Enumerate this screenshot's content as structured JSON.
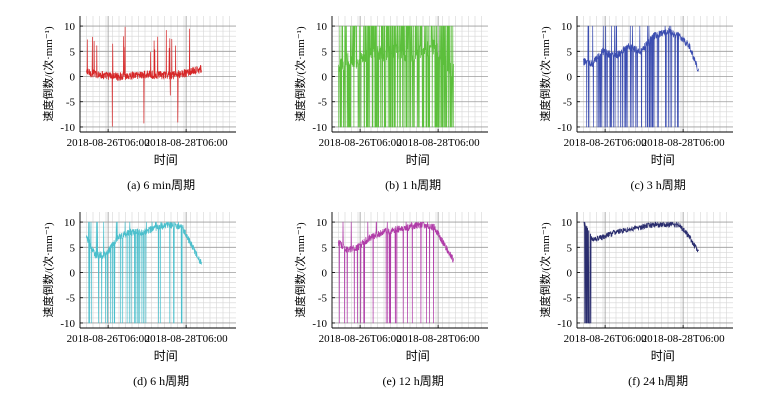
{
  "chart_data": [
    {
      "id": "a",
      "type": "line",
      "caption": "(a) 6 min周期",
      "color": "#d62728",
      "xlabel": "时间",
      "ylabel": "速度倒数/(次·mm⁻¹)",
      "ylim": [
        -11,
        12
      ],
      "yticks": [
        -10,
        -5,
        0,
        5,
        10
      ],
      "xtick_labels": [
        "2018-08-26T06:00",
        "2018-08-28T06:00"
      ],
      "grid": true,
      "series": [
        {
          "pattern": "noise",
          "x": [
            0.05,
            0.12,
            0.2,
            0.3,
            0.4,
            0.5,
            0.6,
            0.7,
            0.8,
            0.88,
            0.95
          ],
          "y": [
            0.8,
            0.5,
            0.2,
            0.0,
            0.2,
            0.4,
            0.3,
            0.2,
            0.5,
            1.0,
            1.5
          ]
        }
      ]
    },
    {
      "id": "b",
      "type": "line",
      "caption": "(b) 1 h周期",
      "color": "#5cbf3c",
      "xlabel": "时间",
      "ylabel": "速度倒数/(次·mm⁻¹)",
      "ylim": [
        -11,
        12
      ],
      "yticks": [
        -10,
        -5,
        0,
        5,
        10
      ],
      "xtick_labels": [
        "2018-08-26T06:00",
        "2018-08-28T06:00"
      ],
      "grid": true,
      "series": [
        {
          "pattern": "dense",
          "x": [
            0.05,
            0.12,
            0.2,
            0.3,
            0.4,
            0.5,
            0.6,
            0.7,
            0.8,
            0.88,
            0.95
          ],
          "y": [
            1.5,
            3.5,
            3.0,
            5.0,
            4.5,
            5.0,
            4.0,
            5.0,
            6.0,
            3.0,
            1.0
          ]
        }
      ]
    },
    {
      "id": "c",
      "type": "line",
      "caption": "(c) 3 h周期",
      "color": "#3b4db0",
      "xlabel": "时间",
      "ylabel": "速度倒数/(次·mm⁻¹)",
      "ylim": [
        -11,
        12
      ],
      "yticks": [
        -10,
        -5,
        0,
        5,
        10
      ],
      "xtick_labels": [
        "2018-08-26T06:00",
        "2018-08-28T06:00"
      ],
      "grid": true,
      "series": [
        {
          "pattern": "drops",
          "drop_density": 1.0,
          "x": [
            0.05,
            0.12,
            0.2,
            0.3,
            0.4,
            0.5,
            0.6,
            0.7,
            0.8,
            0.88,
            0.95
          ],
          "y": [
            3.0,
            2.5,
            5.0,
            4.0,
            6.0,
            5.0,
            8.0,
            9.0,
            8.0,
            6.0,
            1.2
          ]
        }
      ]
    },
    {
      "id": "d",
      "type": "line",
      "caption": "(d) 6 h周期",
      "color": "#4bbfcc",
      "xlabel": "时间",
      "ylabel": "速度倒数/(次·mm⁻¹)",
      "ylim": [
        -11,
        12
      ],
      "yticks": [
        -10,
        -5,
        0,
        5,
        10
      ],
      "xtick_labels": [
        "2018-08-26T06:00",
        "2018-08-28T06:00"
      ],
      "grid": true,
      "series": [
        {
          "pattern": "drops",
          "drop_density": 0.7,
          "x": [
            0.05,
            0.12,
            0.2,
            0.3,
            0.4,
            0.5,
            0.6,
            0.7,
            0.8,
            0.88,
            0.95
          ],
          "y": [
            7.0,
            3.5,
            3.5,
            7.0,
            8.0,
            8.0,
            9.0,
            9.5,
            9.0,
            5.0,
            1.8
          ]
        }
      ]
    },
    {
      "id": "e",
      "type": "line",
      "caption": "(e) 12 h周期",
      "color": "#b03ca8",
      "xlabel": "时间",
      "ylabel": "速度倒数/(次·mm⁻¹)",
      "ylim": [
        -11,
        12
      ],
      "yticks": [
        -10,
        -5,
        0,
        5,
        10
      ],
      "xtick_labels": [
        "2018-08-26T06:00",
        "2018-08-28T06:00"
      ],
      "grid": true,
      "series": [
        {
          "pattern": "drops",
          "drop_density": 0.45,
          "x": [
            0.05,
            0.12,
            0.2,
            0.3,
            0.4,
            0.5,
            0.6,
            0.7,
            0.8,
            0.88,
            0.95
          ],
          "y": [
            6.0,
            4.5,
            5.0,
            7.0,
            8.0,
            8.5,
            9.0,
            9.5,
            9.0,
            5.5,
            2.5
          ]
        }
      ]
    },
    {
      "id": "f",
      "type": "line",
      "caption": "(f) 24 h周期",
      "color": "#2a2d6e",
      "xlabel": "时间",
      "ylabel": "速度倒数/(次·mm⁻¹)",
      "ylim": [
        -11,
        12
      ],
      "yticks": [
        -10,
        -5,
        0,
        5,
        10
      ],
      "xtick_labels": [
        "2018-08-26T06:00",
        "2018-08-28T06:00"
      ],
      "grid": true,
      "series": [
        {
          "pattern": "early_drop",
          "x": [
            0.05,
            0.12,
            0.2,
            0.3,
            0.4,
            0.5,
            0.6,
            0.7,
            0.8,
            0.88,
            0.95
          ],
          "y": [
            10.0,
            6.5,
            7.0,
            8.0,
            8.5,
            9.0,
            9.5,
            9.5,
            9.5,
            7.0,
            4.0
          ]
        }
      ]
    }
  ]
}
